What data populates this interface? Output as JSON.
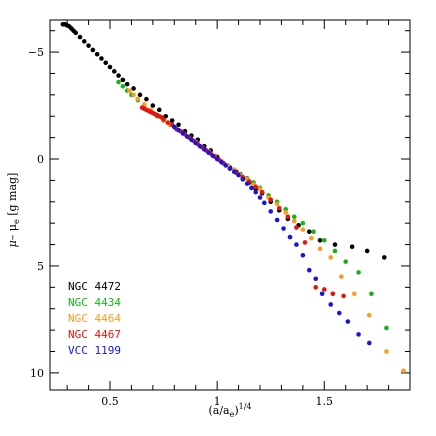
{
  "chart_data": {
    "type": "scatter",
    "xlabel": "(a/a_e)^1/4",
    "xlabel_parts": {
      "base": "(a/a",
      "sub": "e",
      "close": ")",
      "sup": "1/4"
    },
    "ylabel_parts": {
      "mu": "μ",
      "minus": "– μ",
      "sub": "e",
      "units": " [g mag]"
    },
    "xlim": [
      0.22,
      1.9
    ],
    "ylim": [
      -6.5,
      10.8
    ],
    "y_inverted": true,
    "xticks": [
      0.5,
      1,
      1.5
    ],
    "xtick_labels": [
      "0.5",
      "1",
      "1.5"
    ],
    "yticks": [
      -5,
      0,
      5,
      10
    ],
    "ytick_labels": [
      "−5",
      "0",
      "5",
      "10"
    ],
    "legend_position": "bottom-left",
    "series": [
      {
        "name": "NGC 4472",
        "color": "#000000",
        "x": [
          0.28,
          0.29,
          0.3,
          0.31,
          0.32,
          0.33,
          0.34,
          0.36,
          0.38,
          0.4,
          0.42,
          0.44,
          0.46,
          0.48,
          0.5,
          0.52,
          0.54,
          0.56,
          0.58,
          0.61,
          0.64,
          0.67,
          0.7,
          0.73,
          0.76,
          0.79,
          0.82,
          0.85,
          0.88,
          0.91,
          0.94,
          0.97,
          1.0,
          1.03,
          1.06,
          1.09,
          1.12,
          1.15,
          1.18,
          1.21,
          1.25,
          1.29,
          1.33,
          1.38,
          1.43,
          1.48,
          1.55,
          1.63,
          1.7,
          1.78
        ],
        "y": [
          -6.3,
          -6.3,
          -6.25,
          -6.2,
          -6.1,
          -6.0,
          -5.9,
          -5.7,
          -5.5,
          -5.3,
          -5.1,
          -4.9,
          -4.7,
          -4.5,
          -4.3,
          -4.1,
          -3.9,
          -3.7,
          -3.5,
          -3.3,
          -3.0,
          -2.8,
          -2.5,
          -2.3,
          -2.0,
          -1.8,
          -1.6,
          -1.3,
          -1.1,
          -0.9,
          -0.6,
          -0.4,
          -0.1,
          0.2,
          0.4,
          0.6,
          0.9,
          1.1,
          1.4,
          1.6,
          2.0,
          2.4,
          2.8,
          3.1,
          3.4,
          3.8,
          4.0,
          4.1,
          4.3,
          4.6
        ]
      },
      {
        "name": "NGC 4434",
        "color": "#16b316",
        "x": [
          0.54,
          0.56,
          0.58,
          0.6,
          0.63,
          0.66,
          0.69,
          0.72,
          0.75,
          0.78,
          0.81,
          0.84,
          0.87,
          0.9,
          0.93,
          0.96,
          0.99,
          1.02,
          1.05,
          1.08,
          1.11,
          1.14,
          1.17,
          1.2,
          1.24,
          1.28,
          1.32,
          1.36,
          1.4,
          1.45,
          1.5,
          1.55,
          1.6,
          1.66,
          1.72,
          1.79
        ],
        "y": [
          -3.6,
          -3.4,
          -3.2,
          -3.0,
          -2.75,
          -2.5,
          -2.25,
          -2.0,
          -1.8,
          -1.6,
          -1.4,
          -1.2,
          -1.0,
          -0.8,
          -0.55,
          -0.35,
          -0.15,
          0.1,
          0.3,
          0.5,
          0.7,
          0.9,
          1.1,
          1.35,
          1.7,
          2.0,
          2.35,
          2.7,
          3.0,
          3.4,
          3.8,
          4.3,
          4.8,
          5.3,
          6.3,
          7.9
        ]
      },
      {
        "name": "NGC 4464",
        "color": "#ff9a1a",
        "x": [
          0.59,
          0.61,
          0.63,
          0.66,
          0.69,
          0.72,
          0.75,
          0.78,
          0.81,
          0.84,
          0.87,
          0.9,
          0.93,
          0.96,
          0.99,
          1.02,
          1.05,
          1.08,
          1.11,
          1.14,
          1.17,
          1.2,
          1.24,
          1.28,
          1.32,
          1.36,
          1.4,
          1.44,
          1.48,
          1.53,
          1.58,
          1.64,
          1.71,
          1.79,
          1.87
        ],
        "y": [
          -3.2,
          -3.0,
          -2.8,
          -2.55,
          -2.3,
          -2.05,
          -1.8,
          -1.6,
          -1.4,
          -1.2,
          -1.0,
          -0.8,
          -0.55,
          -0.35,
          -0.15,
          0.1,
          0.3,
          0.5,
          0.75,
          0.95,
          1.2,
          1.4,
          1.8,
          2.1,
          2.5,
          2.9,
          3.3,
          3.7,
          4.2,
          4.6,
          5.5,
          6.3,
          7.3,
          9.0,
          9.9
        ]
      },
      {
        "name": "NGC 4467",
        "color": "#e8140c",
        "x": [
          0.65,
          0.66,
          0.67,
          0.68,
          0.69,
          0.7,
          0.71,
          0.72,
          0.73,
          0.74,
          0.75,
          0.77,
          0.79,
          0.81,
          0.83,
          0.85,
          0.87,
          0.89,
          0.91,
          0.93,
          0.95,
          0.97,
          0.99,
          1.01,
          1.03,
          1.06,
          1.09,
          1.12,
          1.15,
          1.18,
          1.21,
          1.25,
          1.29,
          1.33,
          1.37,
          1.41,
          1.46,
          1.5,
          1.54,
          1.59
        ],
        "y": [
          -2.4,
          -2.35,
          -2.3,
          -2.25,
          -2.2,
          -2.15,
          -2.1,
          -2.05,
          -2.0,
          -1.95,
          -1.85,
          -1.7,
          -1.6,
          -1.4,
          -1.3,
          -1.15,
          -1.0,
          -0.85,
          -0.7,
          -0.55,
          -0.4,
          -0.25,
          -0.1,
          0.05,
          0.2,
          0.45,
          0.65,
          0.85,
          1.05,
          1.3,
          1.55,
          1.9,
          2.3,
          2.7,
          3.2,
          3.9,
          6.0,
          6.1,
          6.3,
          6.4
        ]
      },
      {
        "name": "VCC 1199",
        "color": "#1414e6",
        "x": [
          0.8,
          0.82,
          0.84,
          0.86,
          0.88,
          0.9,
          0.92,
          0.94,
          0.96,
          0.98,
          1.0,
          1.02,
          1.04,
          1.06,
          1.08,
          1.1,
          1.12,
          1.14,
          1.16,
          1.18,
          1.2,
          1.22,
          1.25,
          1.28,
          1.31,
          1.34,
          1.37,
          1.4,
          1.43,
          1.46,
          1.49,
          1.53,
          1.57,
          1.61,
          1.66,
          1.71
        ],
        "y": [
          -1.5,
          -1.35,
          -1.2,
          -1.05,
          -0.9,
          -0.75,
          -0.6,
          -0.45,
          -0.3,
          -0.15,
          0.0,
          0.15,
          0.3,
          0.45,
          0.6,
          0.75,
          0.95,
          1.15,
          1.35,
          1.55,
          1.8,
          2.05,
          2.45,
          2.85,
          3.25,
          3.65,
          4.0,
          4.5,
          5.2,
          5.6,
          6.3,
          6.8,
          7.2,
          7.6,
          8.2,
          8.6
        ]
      }
    ]
  }
}
